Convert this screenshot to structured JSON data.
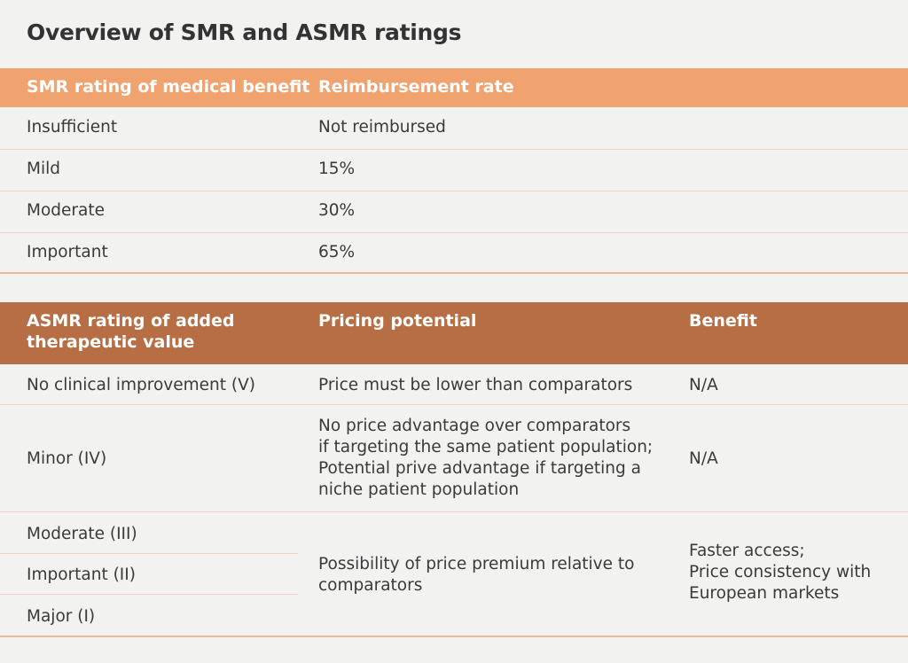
{
  "title": "Overview of SMR and ASMR ratings",
  "smr": {
    "headers": [
      "SMR rating of medical benefit",
      "Reimbursement rate"
    ],
    "rows": [
      {
        "rating": "Insufficient",
        "rate": "Not reimbursed"
      },
      {
        "rating": "Mild",
        "rate": "15%"
      },
      {
        "rating": "Moderate",
        "rate": "30%"
      },
      {
        "rating": "Important",
        "rate": "65%"
      }
    ]
  },
  "asmr": {
    "headers": [
      "ASMR rating of added therapeutic value",
      "Pricing potential",
      "Benefit"
    ],
    "row1": {
      "rating": "No clinical improvement (V)",
      "pricing": "Price must be lower than comparators",
      "benefit": "N/A"
    },
    "row2": {
      "rating": "Minor (IV)",
      "pricing_lines": [
        "No price advantage over comparators",
        "if targeting the same patient population;",
        "Potential prive advantage if targeting a",
        "niche patient population"
      ],
      "benefit": "N/A"
    },
    "group": {
      "ratings": [
        "Moderate (III)",
        "Important (II)",
        "Major (I)"
      ],
      "pricing_lines": [
        "Possibility of price premium relative to",
        "comparators"
      ],
      "benefit_lines": [
        "Faster access;",
        "Price consistency with",
        "European markets"
      ]
    }
  },
  "colors": {
    "smr_header": "#f0a26f",
    "asmr_header": "#b86e45",
    "background": "#f2f2f1",
    "text": "#3a3a3a"
  }
}
